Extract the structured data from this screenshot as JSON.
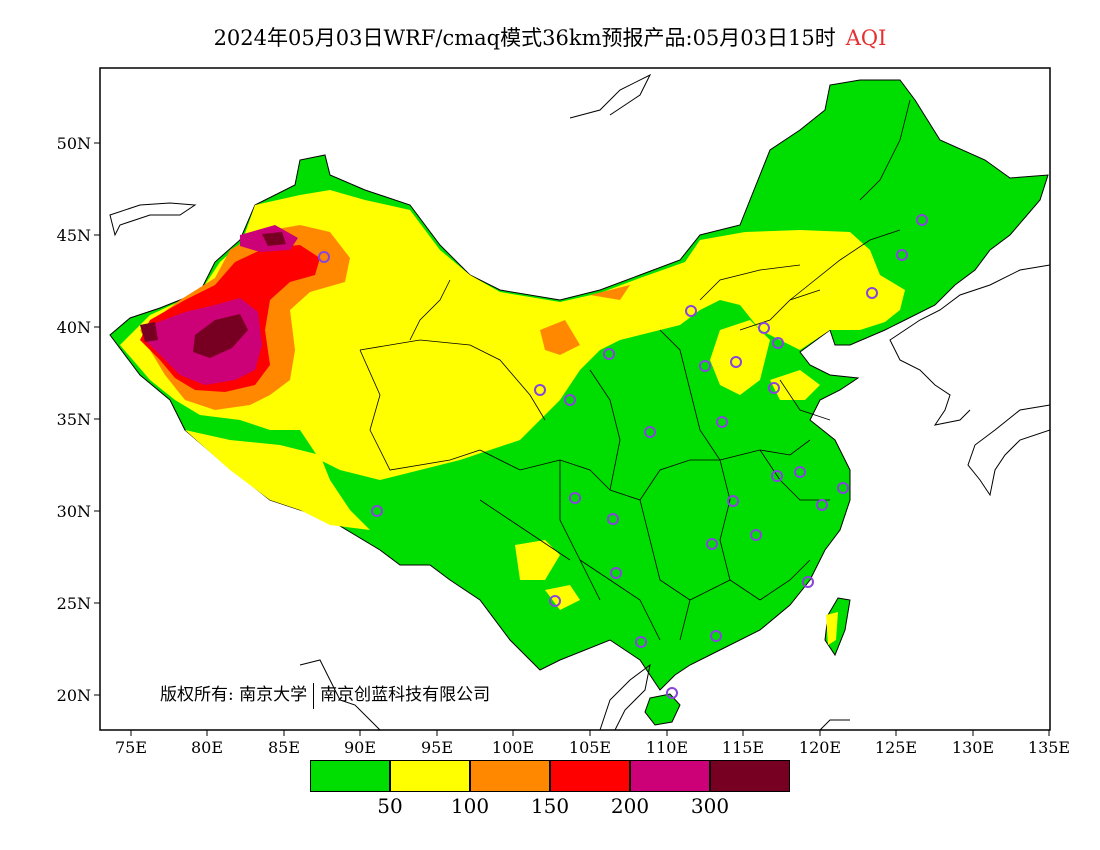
{
  "title": {
    "main": "2024年05月03日WRF/cmaq模式36km预报产品:05月03日15时",
    "pollutant": "AQI"
  },
  "axes": {
    "x_ticks": [
      "75E",
      "80E",
      "85E",
      "90E",
      "95E",
      "100E",
      "105E",
      "110E",
      "115E",
      "120E",
      "125E",
      "130E",
      "135E"
    ],
    "y_ticks": [
      "50N",
      "45N",
      "40N",
      "35N",
      "30N",
      "25N",
      "20N"
    ]
  },
  "copyright": {
    "label": "版权所有:",
    "org1": "南京大学",
    "org2": "南京创蓝科技有限公司"
  },
  "legend": {
    "colors": [
      "#00dd00",
      "#ffff00",
      "#ff8800",
      "#ff0000",
      "#cc0077",
      "#770022"
    ],
    "labels": [
      "50",
      "100",
      "150",
      "200",
      "300"
    ]
  },
  "colors": {
    "good": "#00dd00",
    "moderate": "#ffff00",
    "unhealthy_sensitive": "#ff8800",
    "unhealthy": "#ff0000",
    "very_unhealthy": "#cc0077",
    "hazardous": "#770022",
    "station_marker": "#8844dd"
  }
}
